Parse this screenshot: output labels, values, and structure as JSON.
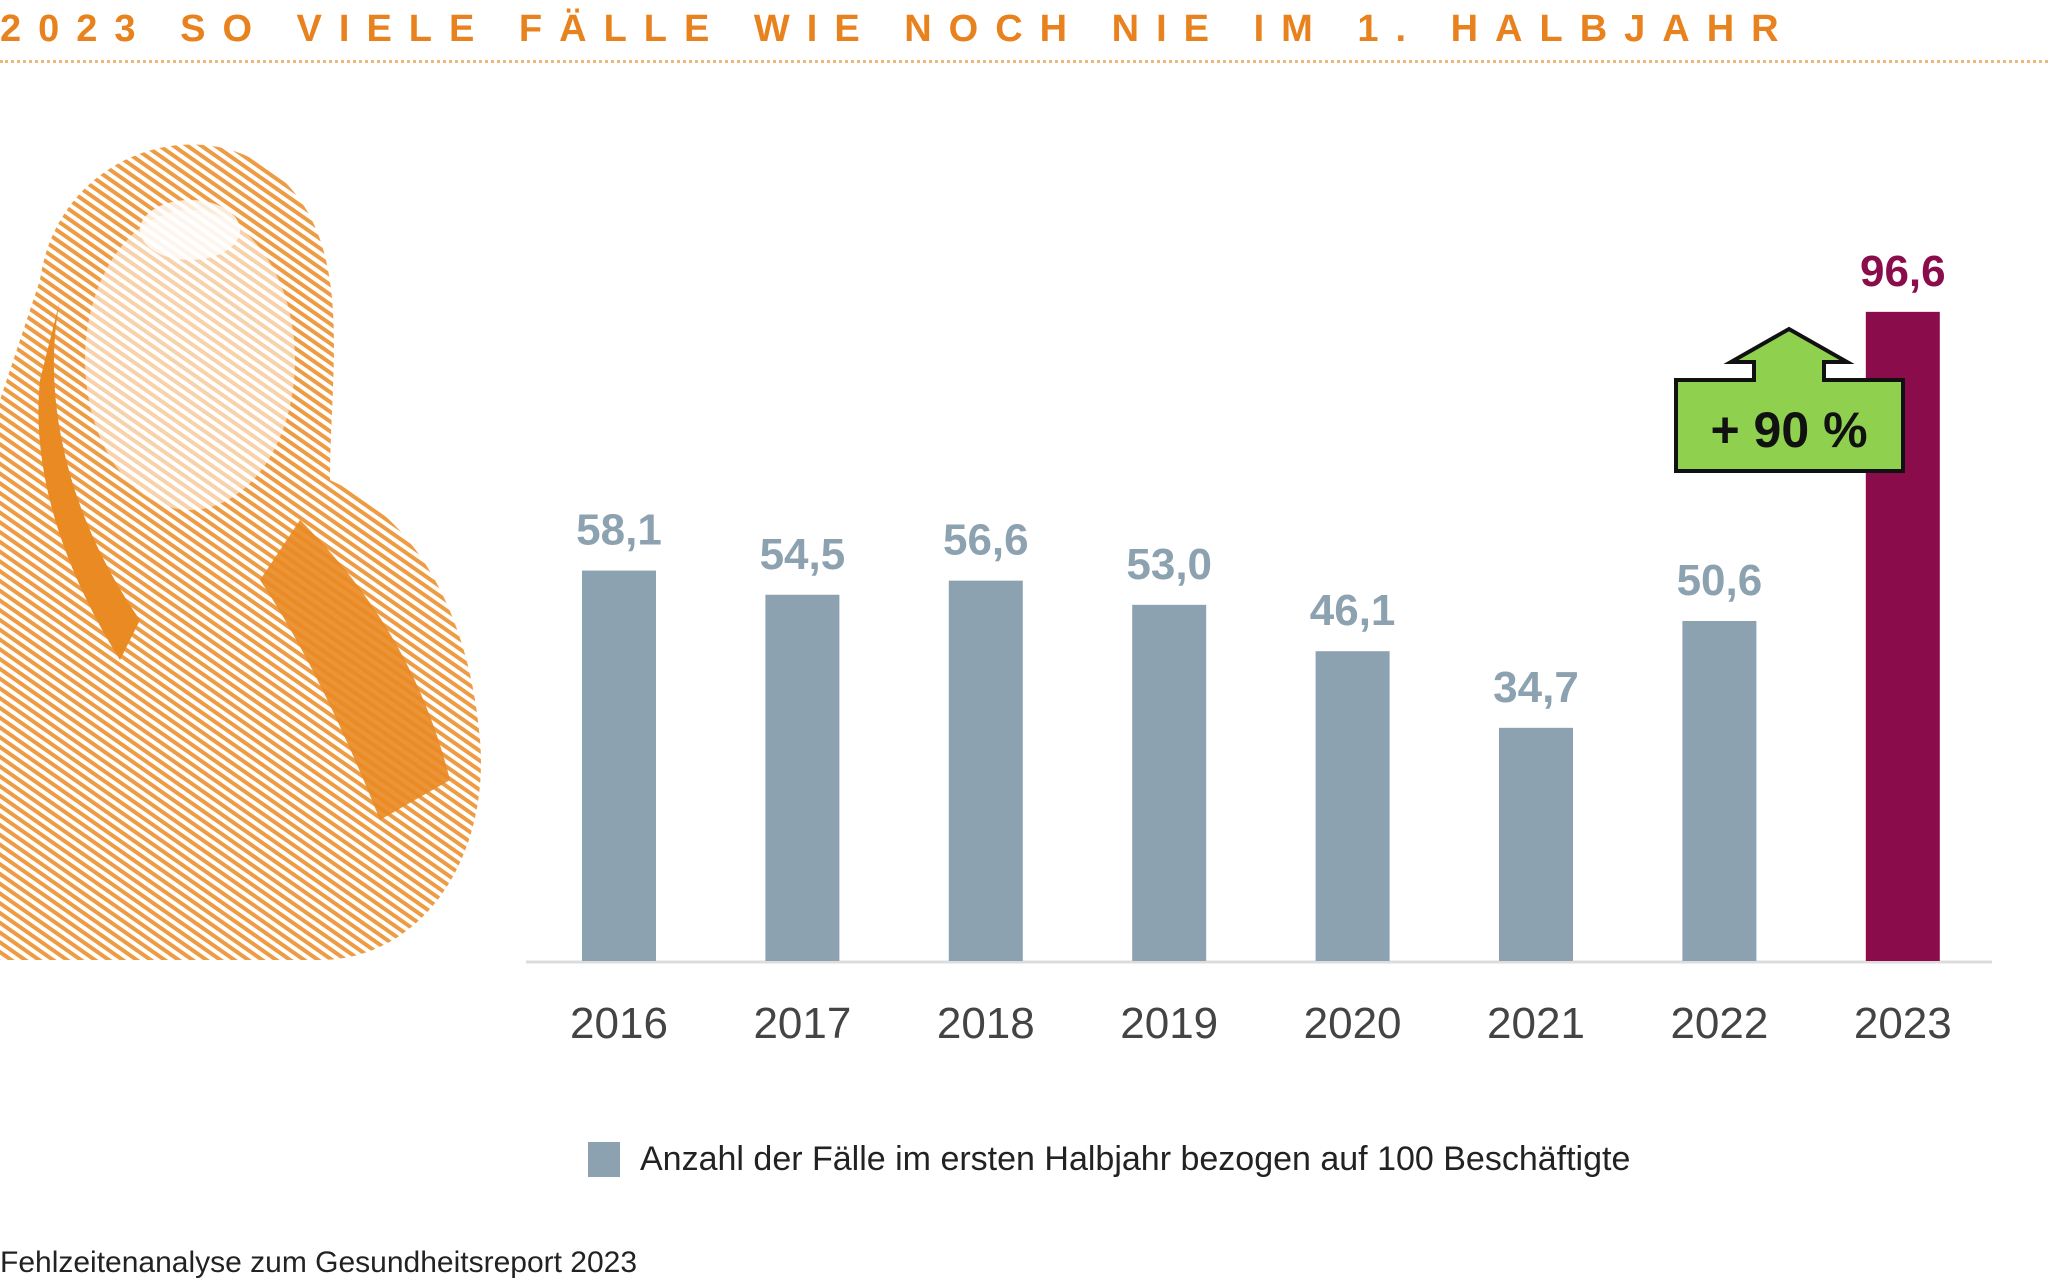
{
  "title": "2023 SO VIELE FÄLLE WIE NOCH NIE IM 1. HALBJAHR",
  "source": "Fehlzeitenanalyse zum Gesundheitsreport 2023",
  "colors": {
    "title": "#e8821e",
    "bar": "#8da2b0",
    "highlight": "#8b0c4b",
    "badge": "#8fd14f"
  },
  "chart_data": {
    "type": "bar",
    "title": "2023 SO VIELE FÄLLE WIE NOCH NIE IM 1. HALBJAHR",
    "categories": [
      "2016",
      "2017",
      "2018",
      "2019",
      "2020",
      "2021",
      "2022",
      "2023"
    ],
    "values": [
      58.1,
      54.5,
      56.6,
      53.0,
      46.1,
      34.7,
      50.6,
      96.6
    ],
    "value_labels": [
      "58,1",
      "54,5",
      "56,6",
      "53,0",
      "46,1",
      "34,7",
      "50,6",
      "96,6"
    ],
    "highlight_index": 7,
    "ylim": [
      0,
      100
    ],
    "xlabel": "",
    "ylabel": "",
    "grid": false,
    "legend": {
      "position": "bottom",
      "entries": [
        "Anzahl der Fälle im ersten Halbjahr bezogen auf 100 Beschäftigte"
      ]
    },
    "annotation": "+ 90 %"
  }
}
